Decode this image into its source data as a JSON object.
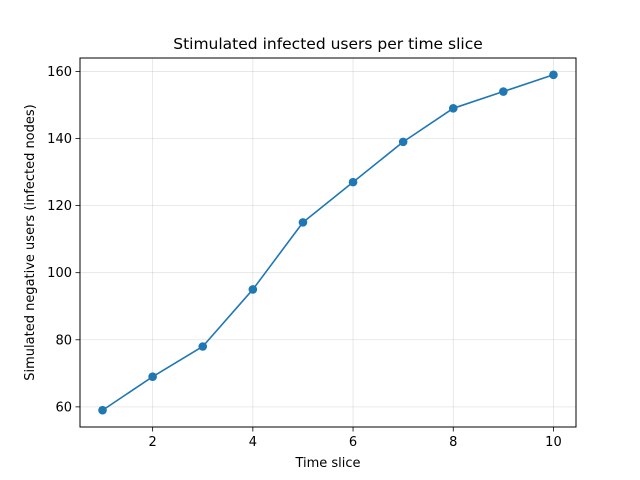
{
  "chart_data": {
    "type": "line",
    "title": "Stimulated infected users per time slice",
    "xlabel": "Time slice",
    "ylabel": "Simulated negative users (infected nodes)",
    "x": [
      1,
      2,
      3,
      4,
      5,
      6,
      7,
      8,
      9,
      10
    ],
    "series": [
      {
        "values": [
          59,
          69,
          78,
          95,
          115,
          127,
          139,
          149,
          154,
          159
        ],
        "color": "#1f77b4",
        "marker": "circle"
      }
    ],
    "xlim": [
      0.55,
      10.45
    ],
    "ylim": [
      54,
      164
    ],
    "xticks": [
      2,
      4,
      6,
      8,
      10
    ],
    "yticks": [
      60,
      80,
      100,
      120,
      140,
      160
    ],
    "grid": true
  }
}
